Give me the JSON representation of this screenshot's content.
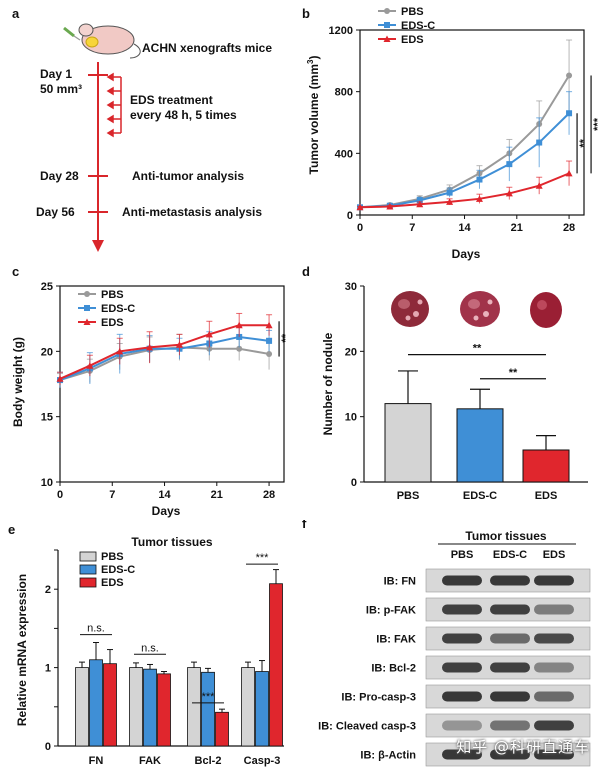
{
  "panel_labels": {
    "a": "a",
    "b": "b",
    "c": "c",
    "d": "d",
    "e": "e",
    "f": "f"
  },
  "panel_a": {
    "mouse_label": "ACHN xenografts mice",
    "day1_label": "Day 1",
    "day1_volume": "50 mm³",
    "treatment_line1": "EDS treatment",
    "treatment_line2": "every 48 h, 5 times",
    "day28_label": "Day 28",
    "day28_text": "Anti-tumor analysis",
    "day56_label": "Day 56",
    "day56_text": "Anti-metastasis analysis",
    "colors": {
      "timeline": "#d9262b"
    }
  },
  "colors": {
    "pbs": "#9a9a9a",
    "edsc": "#3f8fd6",
    "eds": "#e0262d",
    "pbs_bar": "#d4d4d4",
    "edsc_bar": "#3f8fd6",
    "eds_bar": "#e0262d"
  },
  "chart_data": [
    {
      "id": "b",
      "type": "line",
      "xlabel": "Days",
      "ylabel": "Tumor volume (mm",
      "ylabel_sup": "3",
      "ylabel_close": ")",
      "x": [
        0,
        4,
        8,
        12,
        16,
        20,
        24,
        28
      ],
      "xticks": [
        0,
        7,
        14,
        21,
        28
      ],
      "yticks": [
        0,
        400,
        800,
        1200
      ],
      "xlim": [
        0,
        30
      ],
      "ylim": [
        0,
        1200
      ],
      "legend": [
        "PBS",
        "EDS-C",
        "EDS"
      ],
      "series": [
        {
          "name": "PBS",
          "values": [
            50,
            65,
            105,
            165,
            270,
            400,
            590,
            905
          ],
          "errors": [
            8,
            10,
            20,
            30,
            50,
            90,
            150,
            230
          ]
        },
        {
          "name": "EDS-C",
          "values": [
            50,
            60,
            95,
            145,
            230,
            330,
            470,
            660
          ],
          "errors": [
            8,
            10,
            20,
            30,
            60,
            110,
            160,
            140
          ]
        },
        {
          "name": "EDS",
          "values": [
            50,
            55,
            70,
            85,
            105,
            140,
            190,
            270
          ],
          "errors": [
            6,
            8,
            15,
            20,
            30,
            40,
            55,
            80
          ]
        }
      ],
      "significance": [
        "**",
        "***"
      ]
    },
    {
      "id": "c",
      "type": "line",
      "xlabel": "Days",
      "ylabel": "Body weight (g)",
      "x": [
        0,
        4,
        8,
        12,
        16,
        20,
        24,
        28
      ],
      "xticks": [
        0,
        7,
        14,
        21,
        28
      ],
      "yticks": [
        10,
        15,
        20,
        25
      ],
      "xlim": [
        0,
        30
      ],
      "ylim": [
        10,
        25
      ],
      "legend": [
        "PBS",
        "EDS-C",
        "EDS"
      ],
      "series": [
        {
          "name": "PBS",
          "values": [
            17.8,
            18.5,
            19.6,
            20.1,
            20.3,
            20.2,
            20.2,
            19.8
          ],
          "errors": [
            0.5,
            0.9,
            1.0,
            1.0,
            1.0,
            0.9,
            0.9,
            1.2
          ]
        },
        {
          "name": "EDS-C",
          "values": [
            17.8,
            18.7,
            19.8,
            20.2,
            20.2,
            20.6,
            21.1,
            20.8
          ],
          "errors": [
            0.6,
            1.2,
            1.5,
            1.0,
            0.8,
            0.9,
            0.8,
            0.8
          ]
        },
        {
          "name": "EDS",
          "values": [
            17.9,
            18.9,
            20.0,
            20.3,
            20.5,
            21.3,
            22.0,
            22.0
          ],
          "errors": [
            0.5,
            0.8,
            1.0,
            1.2,
            0.8,
            1.0,
            0.9,
            0.8
          ]
        }
      ],
      "significance": [
        "**"
      ]
    },
    {
      "id": "d",
      "type": "bar",
      "xlabel": "",
      "ylabel": "Number of nodule",
      "categories": [
        "PBS",
        "EDS-C",
        "EDS"
      ],
      "values": [
        12,
        11.2,
        4.9
      ],
      "errors": [
        5,
        3,
        2.2
      ],
      "yticks": [
        0,
        10,
        20,
        30
      ],
      "ylim": [
        0,
        30
      ],
      "significance": [
        "**",
        "**"
      ]
    },
    {
      "id": "e",
      "type": "bar",
      "title": "Tumor tissues",
      "xlabel": "",
      "ylabel": "Relative mRNA expression",
      "categories": [
        "FN",
        "FAK",
        "Bcl-2",
        "Casp-3"
      ],
      "legend": [
        "PBS",
        "EDS-C",
        "EDS"
      ],
      "series": [
        {
          "name": "PBS",
          "values": [
            1.0,
            1.0,
            1.0,
            1.0
          ],
          "errors": [
            0.07,
            0.06,
            0.07,
            0.07
          ]
        },
        {
          "name": "EDS-C",
          "values": [
            1.1,
            0.98,
            0.94,
            0.95
          ],
          "errors": [
            0.22,
            0.06,
            0.05,
            0.14
          ]
        },
        {
          "name": "EDS",
          "values": [
            1.05,
            0.92,
            0.43,
            2.07
          ],
          "errors": [
            0.18,
            0.03,
            0.04,
            0.18
          ]
        }
      ],
      "yticks": [
        0,
        0.5,
        1,
        1.5,
        2,
        2.5
      ],
      "ytick_labels": [
        "0",
        "",
        "1",
        "",
        "2",
        ""
      ],
      "ylim": [
        0,
        2.5
      ],
      "significance": [
        "n.s.",
        "n.s.",
        "***",
        "***"
      ]
    }
  ],
  "panel_f": {
    "title": "Tumor tissues",
    "lanes": [
      "PBS",
      "EDS-C",
      "EDS"
    ],
    "rows": [
      {
        "label": "IB: FN",
        "intensity": [
          0.85,
          0.85,
          0.85
        ]
      },
      {
        "label": "IB: p-FAK",
        "intensity": [
          0.8,
          0.8,
          0.45
        ]
      },
      {
        "label": "IB: FAK",
        "intensity": [
          0.8,
          0.55,
          0.75
        ]
      },
      {
        "label": "IB: Bcl-2",
        "intensity": [
          0.8,
          0.8,
          0.4
        ]
      },
      {
        "label": "IB: Pro-casp-3",
        "intensity": [
          0.85,
          0.85,
          0.55
        ]
      },
      {
        "label": "IB: Cleaved casp-3",
        "intensity": [
          0.3,
          0.5,
          0.8
        ]
      },
      {
        "label": "IB: β-Actin",
        "intensity": [
          0.85,
          0.85,
          0.85
        ]
      }
    ]
  },
  "watermark": "知乎 @科研直通车"
}
